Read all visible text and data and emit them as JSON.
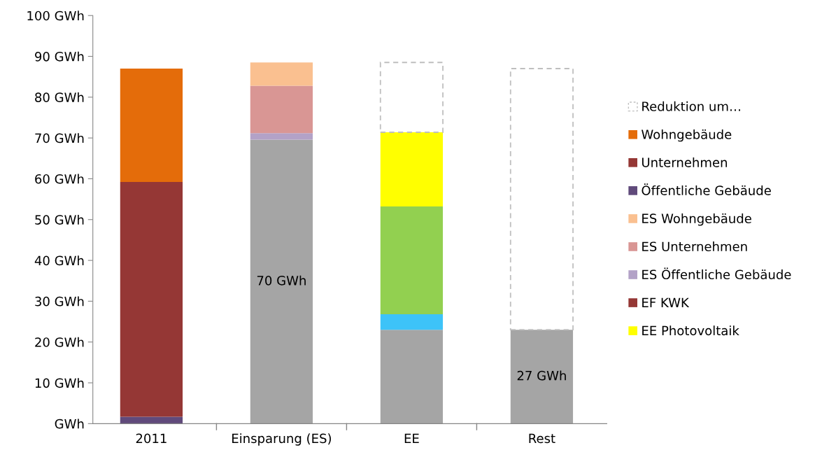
{
  "chart_data": {
    "type": "bar",
    "stacked": true,
    "categories": [
      "2011",
      "Einsparung (ES)",
      "EE",
      "Rest"
    ],
    "series": [
      {
        "color": "#a5a5a5",
        "values": [
          null,
          69.6,
          23.0,
          23.0
        ]
      },
      {
        "color": "#3dc3f8",
        "values": [
          null,
          null,
          3.8,
          null
        ]
      },
      {
        "color": "#92d050",
        "values": [
          null,
          null,
          26.4,
          null
        ]
      },
      {
        "name": "EE Photovoltaik",
        "color": "#ffff00",
        "values": [
          null,
          null,
          18.2,
          null
        ]
      },
      {
        "name": "EF KWK",
        "color": "#953735",
        "values": [
          null,
          null,
          null,
          null
        ]
      },
      {
        "name": "ES Öffentliche Gebäude",
        "color": "#b3a2c7",
        "values": [
          null,
          1.6,
          null,
          null
        ]
      },
      {
        "name": "ES Unternehmen",
        "color": "#d99694",
        "values": [
          null,
          11.6,
          null,
          null
        ]
      },
      {
        "name": "ES Wohngebäude",
        "color": "#fac090",
        "values": [
          null,
          5.7,
          null,
          null
        ]
      },
      {
        "name": "Öffentliche Gebäude",
        "color": "#604a7b",
        "values": [
          1.7,
          null,
          null,
          null
        ]
      },
      {
        "name": "Unternehmen",
        "color": "#953735",
        "values": [
          57.5,
          null,
          null,
          null
        ]
      },
      {
        "name": "Wohngebäude",
        "color": "#e46c0a",
        "values": [
          27.8,
          null,
          null,
          null
        ]
      },
      {
        "name": "Reduktion um…",
        "color": "#bfbfbf",
        "line_style": "dashed",
        "values": [
          null,
          null,
          17.1,
          64.0
        ]
      }
    ],
    "ylim": [
      0,
      100
    ],
    "yticks": [
      {
        "value": 0,
        "label": "GWh"
      },
      {
        "value": 10,
        "label": "10 GWh"
      },
      {
        "value": 20,
        "label": "20 GWh"
      },
      {
        "value": 30,
        "label": "30 GWh"
      },
      {
        "value": 40,
        "label": "40 GWh"
      },
      {
        "value": 50,
        "label": "50 GWh"
      },
      {
        "value": 60,
        "label": "60 GWh"
      },
      {
        "value": 70,
        "label": "70 GWh"
      },
      {
        "value": 80,
        "label": "80 GWh"
      },
      {
        "value": 90,
        "label": "90 GWh"
      },
      {
        "value": 100,
        "label": "100 GWh"
      }
    ],
    "annotations": [
      "70 GWh",
      "27 GWh"
    ],
    "grid": false,
    "legend": "right"
  }
}
